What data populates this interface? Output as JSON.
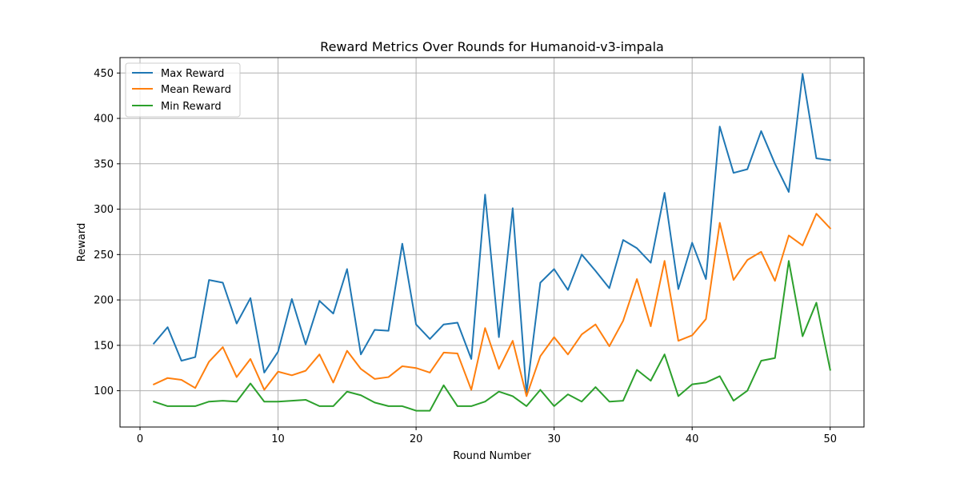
{
  "chart_data": {
    "type": "line",
    "title": "Reward Metrics Over Rounds for Humanoid-v3-impala",
    "xlabel": "Round Number",
    "ylabel": "Reward",
    "xlim": [
      -1.45,
      52.45
    ],
    "ylim": [
      60,
      467
    ],
    "xticks": [
      0,
      10,
      20,
      30,
      40,
      50
    ],
    "yticks": [
      100,
      150,
      200,
      250,
      300,
      350,
      400,
      450
    ],
    "grid": true,
    "legend_position": "upper-left",
    "x": [
      1,
      2,
      3,
      4,
      5,
      6,
      7,
      8,
      9,
      10,
      11,
      12,
      13,
      14,
      15,
      16,
      17,
      18,
      19,
      20,
      21,
      22,
      23,
      24,
      25,
      26,
      27,
      28,
      29,
      30,
      31,
      32,
      33,
      34,
      35,
      36,
      37,
      38,
      39,
      40,
      41,
      42,
      43,
      44,
      45,
      46,
      47,
      48,
      49,
      50
    ],
    "series": [
      {
        "name": "Max Reward",
        "color": "#1f77b4",
        "values": [
          152,
          170,
          133,
          137,
          222,
          219,
          174,
          202,
          120,
          143,
          201,
          151,
          199,
          185,
          234,
          140,
          167,
          166,
          262,
          173,
          157,
          173,
          175,
          135,
          316,
          159,
          301,
          97,
          219,
          234,
          211,
          250,
          232,
          213,
          266,
          257,
          241,
          318,
          212,
          263,
          223,
          391,
          340,
          344,
          386,
          350,
          319,
          449,
          356,
          354
        ]
      },
      {
        "name": "Mean Reward",
        "color": "#ff7f0e",
        "values": [
          107,
          114,
          112,
          103,
          132,
          148,
          115,
          135,
          101,
          121,
          117,
          122,
          140,
          109,
          144,
          124,
          113,
          115,
          127,
          125,
          120,
          142,
          141,
          101,
          169,
          124,
          155,
          94,
          138,
          159,
          140,
          162,
          173,
          149,
          177,
          223,
          171,
          243,
          155,
          161,
          179,
          285,
          222,
          244,
          253,
          221,
          271,
          260,
          295,
          279
        ]
      },
      {
        "name": "Min Reward",
        "color": "#2ca02c",
        "values": [
          88,
          83,
          83,
          83,
          88,
          89,
          88,
          108,
          88,
          88,
          89,
          90,
          83,
          83,
          99,
          95,
          87,
          83,
          83,
          78,
          78,
          106,
          83,
          83,
          88,
          99,
          94,
          83,
          101,
          83,
          96,
          88,
          104,
          88,
          89,
          123,
          111,
          140,
          94,
          107,
          109,
          116,
          89,
          100,
          133,
          136,
          243,
          160,
          197,
          123
        ]
      }
    ]
  }
}
